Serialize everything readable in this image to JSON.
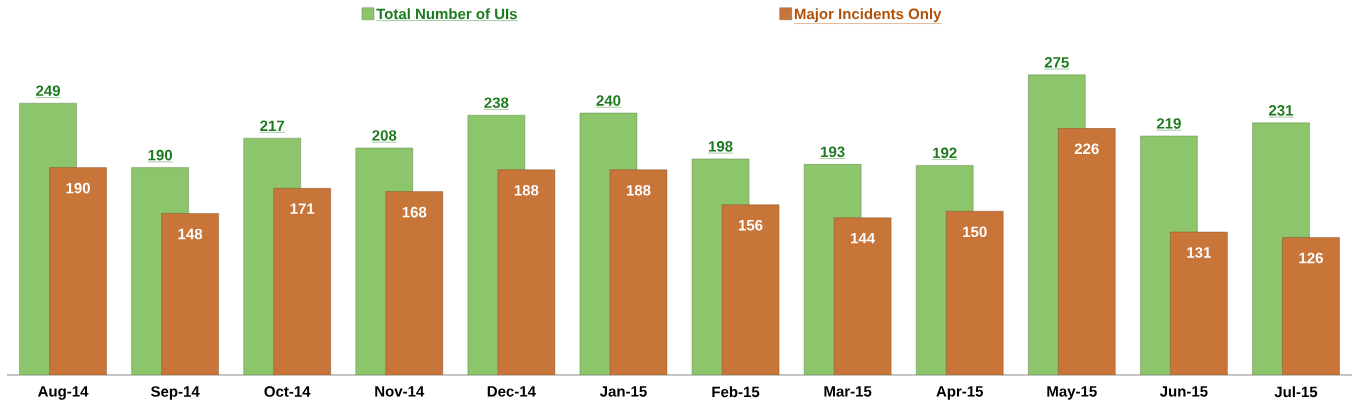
{
  "chart_data": {
    "type": "bar",
    "categories": [
      "Aug-14",
      "Sep-14",
      "Oct-14",
      "Nov-14",
      "Dec-14",
      "Jan-15",
      "Feb-15",
      "Mar-15",
      "Apr-15",
      "May-15",
      "Jun-15",
      "Jul-15"
    ],
    "series": [
      {
        "name": "Total Number of UIs",
        "color": "#8cc56b",
        "values": [
          249,
          190,
          217,
          208,
          238,
          240,
          198,
          193,
          192,
          275,
          219,
          231
        ]
      },
      {
        "name": "Major Incidents Only",
        "color": "#c8753a",
        "values": [
          190,
          148,
          171,
          168,
          188,
          188,
          156,
          144,
          150,
          226,
          131,
          126
        ]
      }
    ],
    "data_labels": true,
    "legend": "top",
    "tick_labels": "x"
  }
}
